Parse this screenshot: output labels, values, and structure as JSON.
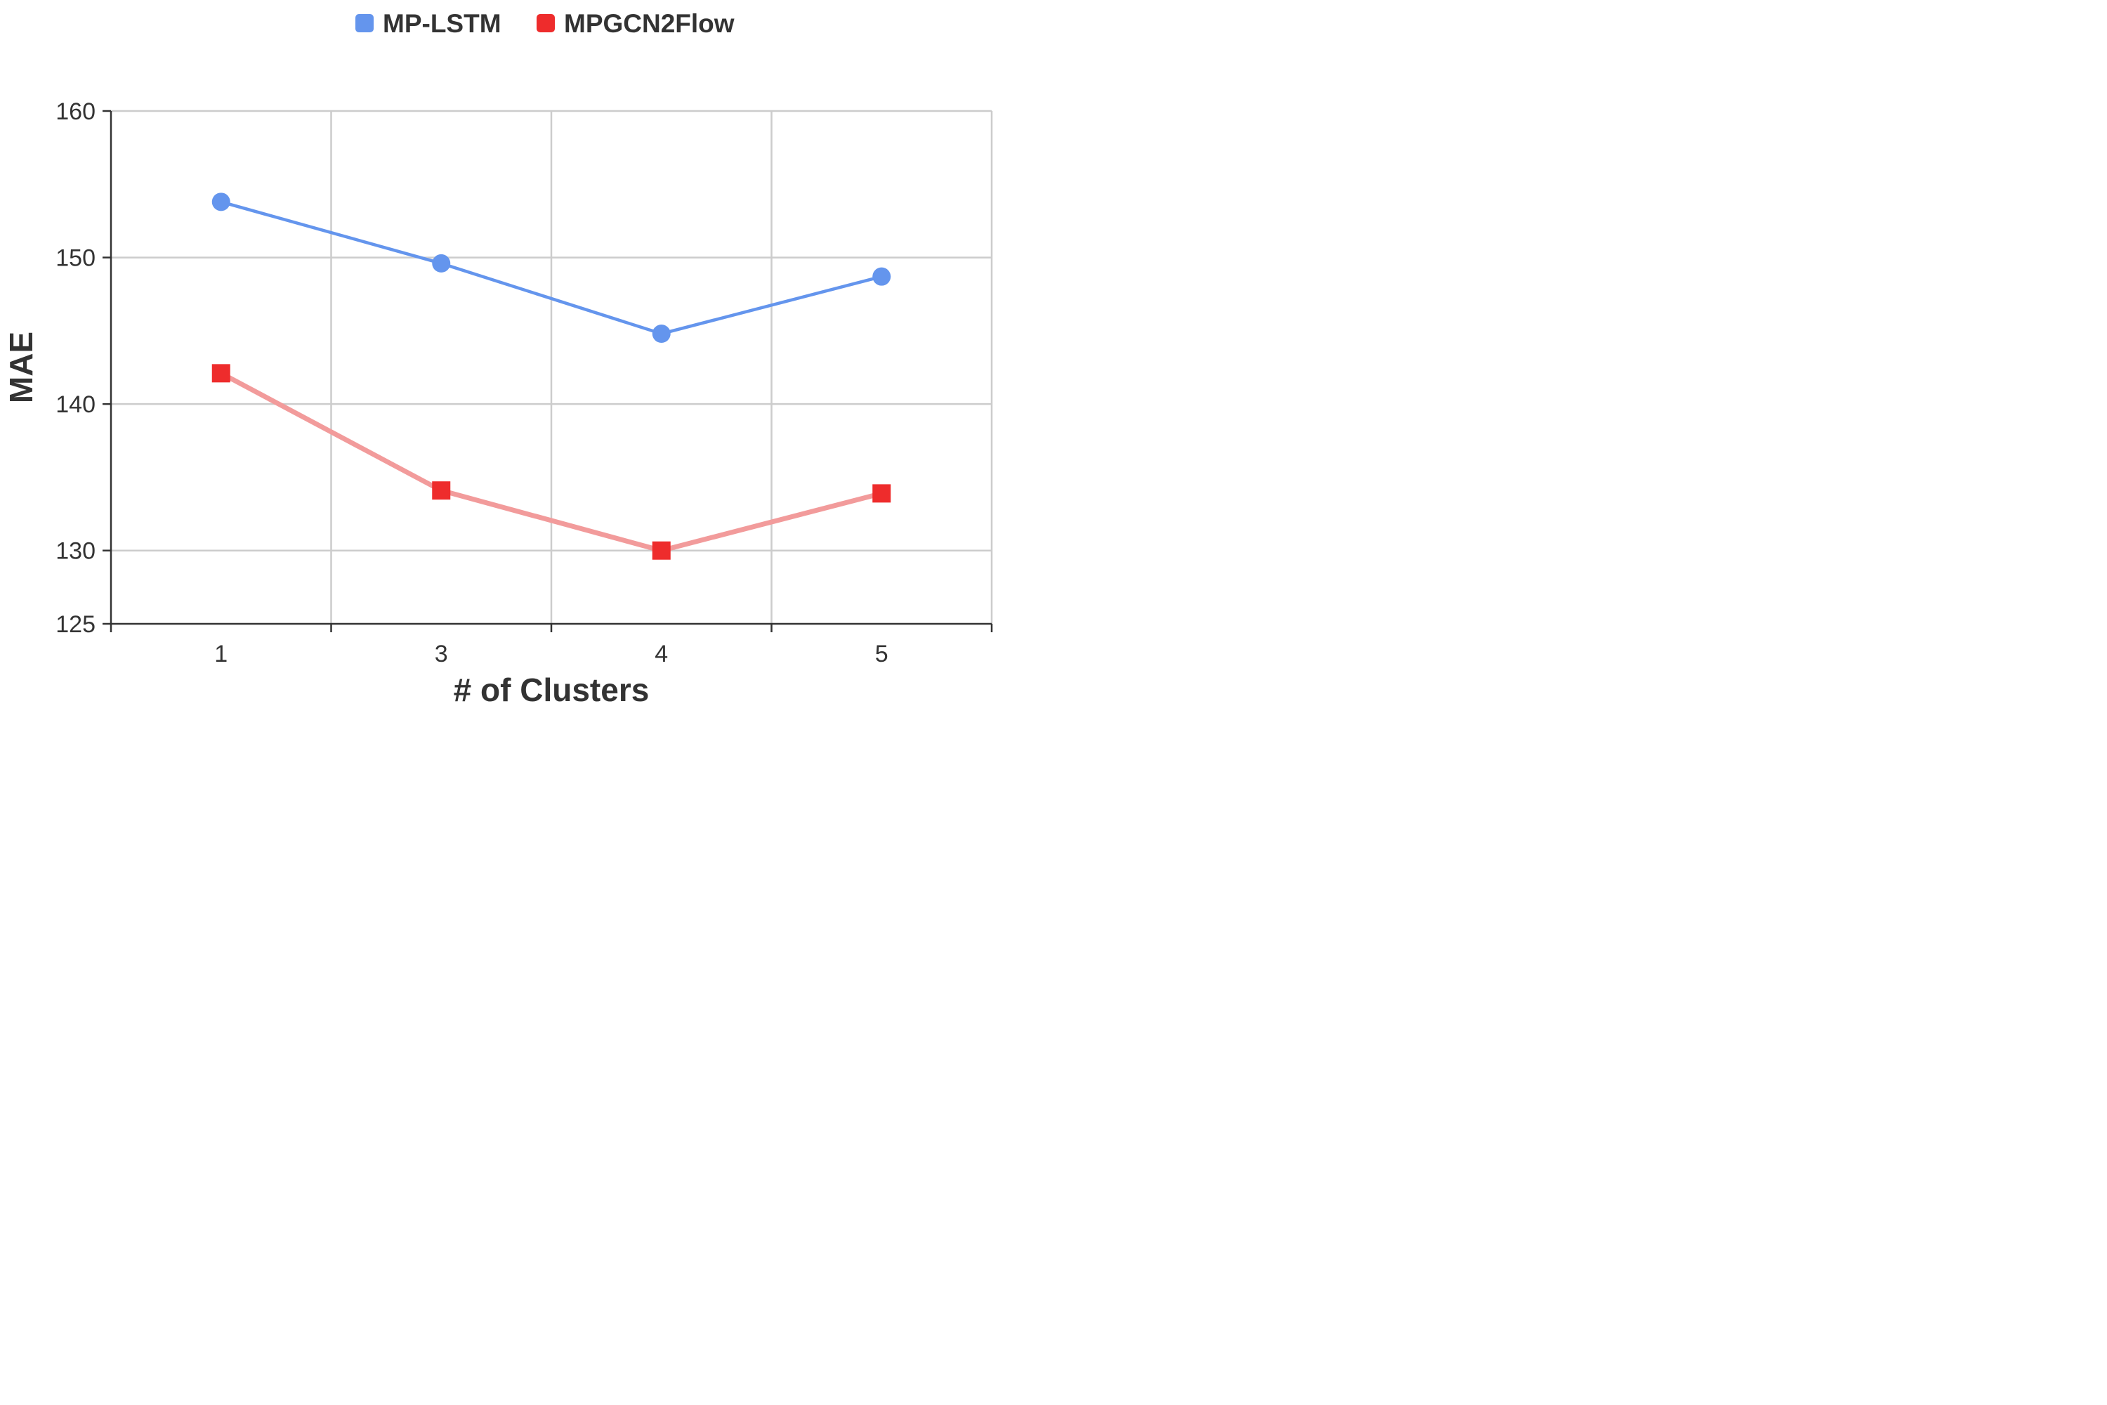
{
  "chart_data": {
    "type": "line",
    "title": "",
    "xlabel": "# of Clusters",
    "ylabel": "MAE",
    "categories": [
      "1",
      "3",
      "4",
      "5"
    ],
    "x_ticks": [
      "1",
      "3",
      "4",
      "5"
    ],
    "y_ticks": [
      125,
      130,
      140,
      150,
      160
    ],
    "ylim": [
      125,
      160
    ],
    "grid": true,
    "legend_position": "top-center",
    "series": [
      {
        "name": "MP-LSTM",
        "values": [
          153.8,
          149.6,
          144.8,
          148.7
        ],
        "color": "#6495ed",
        "line_color": "#6495ed",
        "marker": "circle"
      },
      {
        "name": "MPGCN2Flow",
        "values": [
          142.1,
          134.1,
          130.0,
          133.9
        ],
        "color": "#ee2c2c",
        "line_color": "#f29b9b",
        "marker": "square"
      }
    ]
  }
}
